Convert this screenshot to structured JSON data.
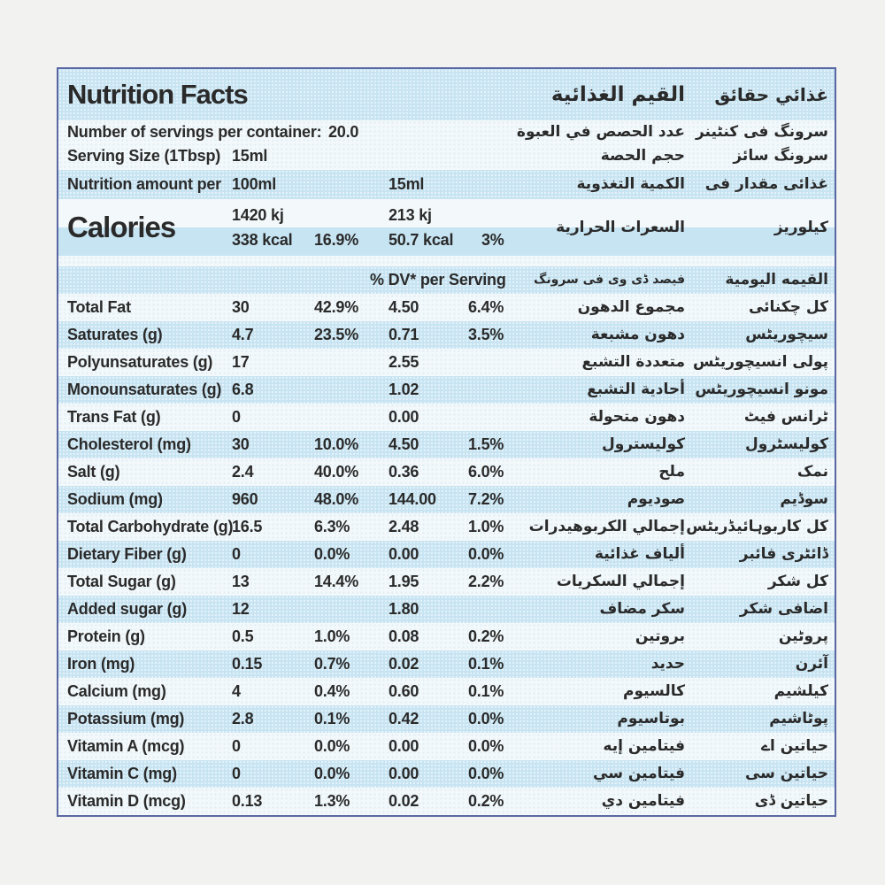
{
  "colors": {
    "page_bg": "#f2f3f1",
    "stripe_blue": "#c7e4f2",
    "row_white": "#f3f8fa",
    "border": "#5a67a3",
    "text": "#2a2a2a"
  },
  "label": {
    "title": {
      "en": "Nutrition Facts",
      "ar": "القيم الغذائية",
      "ur": "غذائي حقائق"
    },
    "servings": {
      "count_label": "Number of servings per container:",
      "count_value": "20.0",
      "count_ar": "عدد الحصص في العبوة",
      "count_ur": "سرونگ فی کنٹینر",
      "size_label": "Serving Size (1Tbsp)",
      "size_value": "15ml",
      "size_ar": "حجم الحصة",
      "size_ur": "سرونگ سائز"
    },
    "amount_per": {
      "en": "Nutrition amount per",
      "col_100": "100ml",
      "col_15": "15ml",
      "ar": "الكمية التغذوية",
      "ur": "غذائی مقدار فی"
    },
    "calories": {
      "en": "Calories",
      "kj_100": "1420 kj",
      "kcal_100": "338 kcal",
      "pct_100": "16.9%",
      "kj_15": "213 kj",
      "kcal_15": "50.7 kcal",
      "pct_15": "3%",
      "ar": "السعرات الحرارية",
      "ur": "کیلوریز"
    },
    "dv_header": {
      "en": "% DV* per Serving",
      "ur": "فیصد ڈی وی فی سرونگ",
      "ar": "القيمه اليومية"
    },
    "rows": [
      {
        "name": "Total Fat",
        "v100": "30",
        "p100": "42.9%",
        "v15": "4.50",
        "p15": "6.4%",
        "ar": "مجموع الدهون",
        "ur": "کل چکنائی"
      },
      {
        "name": "Saturates (g)",
        "v100": "4.7",
        "p100": "23.5%",
        "v15": "0.71",
        "p15": "3.5%",
        "ar": "دهون مشبعة",
        "ur": "سیچوریٹس"
      },
      {
        "name": "Polyunsaturates (g)",
        "v100": "17",
        "p100": "",
        "v15": "2.55",
        "p15": "",
        "ar": "متعددة التشبع",
        "ur": "پولی انسیچوریٹس"
      },
      {
        "name": "Monounsaturates (g)",
        "v100": "6.8",
        "p100": "",
        "v15": "1.02",
        "p15": "",
        "ar": "أحادية التشبع",
        "ur": "مونو انسیچوریٹس"
      },
      {
        "name": "Trans Fat (g)",
        "v100": "0",
        "p100": "",
        "v15": "0.00",
        "p15": "",
        "ar": "دهون متحولة",
        "ur": "ٹرانس فیٹ"
      },
      {
        "name": "Cholesterol (mg)",
        "v100": "30",
        "p100": "10.0%",
        "v15": "4.50",
        "p15": "1.5%",
        "ar": "كوليسترول",
        "ur": "کولیسٹرول"
      },
      {
        "name": "Salt (g)",
        "v100": "2.4",
        "p100": "40.0%",
        "v15": "0.36",
        "p15": "6.0%",
        "ar": "ملح",
        "ur": "نمک"
      },
      {
        "name": "Sodium (mg)",
        "v100": "960",
        "p100": "48.0%",
        "v15": "144.00",
        "p15": "7.2%",
        "ar": "صوديوم",
        "ur": "سوڈیم"
      },
      {
        "name": "Total Carbohydrate (g)",
        "v100": "16.5",
        "p100": "6.3%",
        "v15": "2.48",
        "p15": "1.0%",
        "ar": "إجمالي الكربوهيدرات",
        "ur": "کل کاربوہائیڈریٹس"
      },
      {
        "name": "Dietary Fiber (g)",
        "v100": "0",
        "p100": "0.0%",
        "v15": "0.00",
        "p15": "0.0%",
        "ar": "ألياف غذائية",
        "ur": "ڈائٹری فائبر"
      },
      {
        "name": "Total Sugar (g)",
        "v100": "13",
        "p100": "14.4%",
        "v15": "1.95",
        "p15": "2.2%",
        "ar": "إجمالي السكريات",
        "ur": "کل شکر"
      },
      {
        "name": "Added sugar (g)",
        "v100": "12",
        "p100": "",
        "v15": "1.80",
        "p15": "",
        "ar": "سكر مضاف",
        "ur": "اضافی شکر"
      },
      {
        "name": "Protein (g)",
        "v100": "0.5",
        "p100": "1.0%",
        "v15": "0.08",
        "p15": "0.2%",
        "ar": "بروتين",
        "ur": "پروٹین"
      },
      {
        "name": "Iron (mg)",
        "v100": "0.15",
        "p100": "0.7%",
        "v15": "0.02",
        "p15": "0.1%",
        "ar": "حديد",
        "ur": "آئرن"
      },
      {
        "name": "Calcium (mg)",
        "v100": "4",
        "p100": "0.4%",
        "v15": "0.60",
        "p15": "0.1%",
        "ar": "كالسيوم",
        "ur": "کیلشیم"
      },
      {
        "name": "Potassium (mg)",
        "v100": "2.8",
        "p100": "0.1%",
        "v15": "0.42",
        "p15": "0.0%",
        "ar": "بوتاسيوم",
        "ur": "پوٹاشیم"
      },
      {
        "name": "Vitamin A (mcg)",
        "v100": "0",
        "p100": "0.0%",
        "v15": "0.00",
        "p15": "0.0%",
        "ar": "فيتامين إيه",
        "ur": "حیاتین اے"
      },
      {
        "name": "Vitamin C  (mg)",
        "v100": "0",
        "p100": "0.0%",
        "v15": "0.00",
        "p15": "0.0%",
        "ar": "فيتامين سي",
        "ur": "حیاتین سی"
      },
      {
        "name": "Vitamin D  (mcg)",
        "v100": "0.13",
        "p100": "1.3%",
        "v15": "0.02",
        "p15": "0.2%",
        "ar": "فيتامين دي",
        "ur": "حیاتین ڈی"
      }
    ]
  }
}
